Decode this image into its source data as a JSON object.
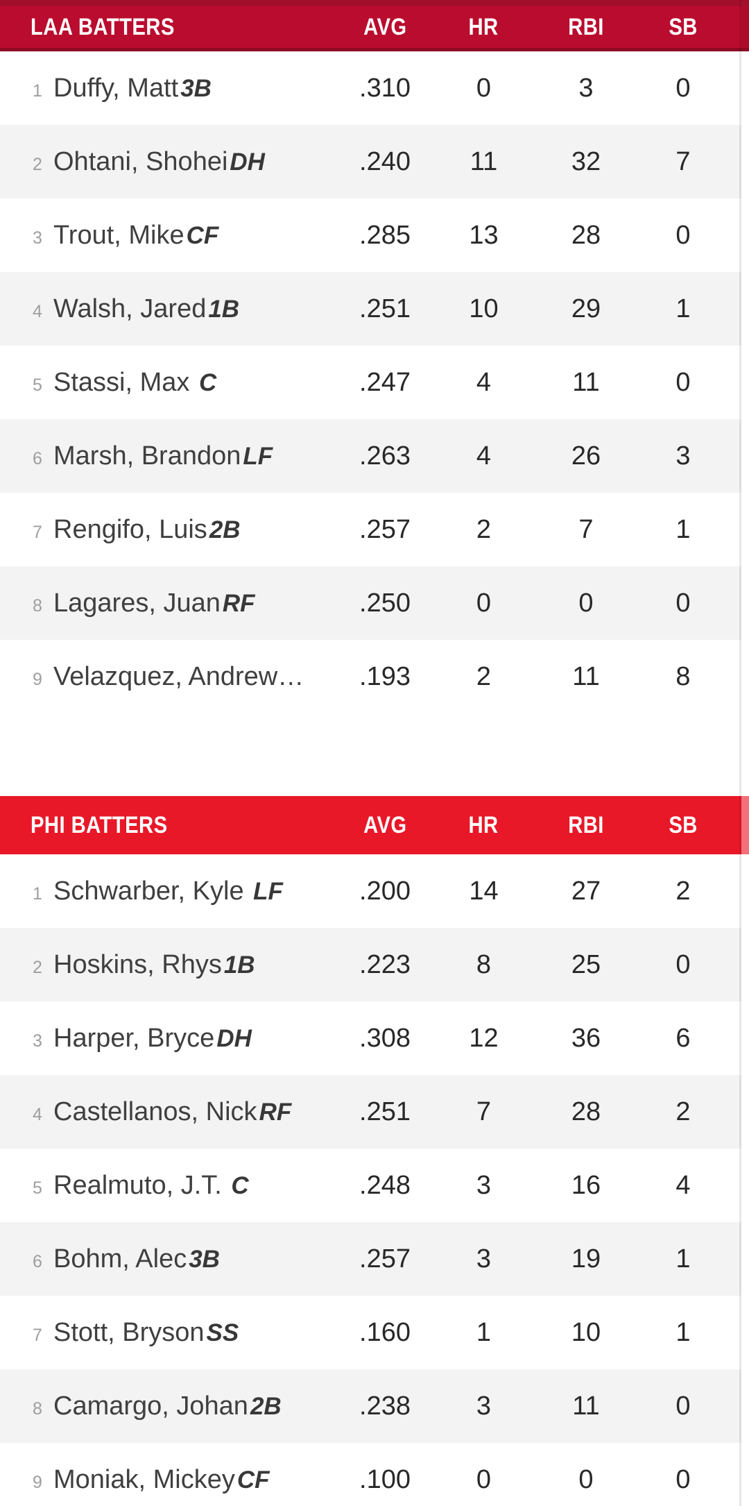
{
  "colors": {
    "page_bg": "#FFFFFF",
    "row_alt": "#F3F3F3",
    "divider": "rgba(0,0,0,0.09)",
    "header_text": "#FFFFFF",
    "name_text": "#3F3F3F",
    "position_text": "#383838",
    "stat_text": "#282828",
    "lineup_number_text": "#9E9E9E"
  },
  "teams": [
    {
      "key": "laa",
      "title": "LAA BATTERS",
      "columns": [
        "AVG",
        "HR",
        "RBI",
        "SB"
      ],
      "colors": {
        "accent": "#BA0C2E",
        "border_top": "#A30E2B",
        "border_bottom": "#8E0A22",
        "edge": "#AD0B2A"
      },
      "rows": [
        {
          "num": "1",
          "name": "Duffy, Matt",
          "pos": "3B",
          "stats": [
            ".310",
            "0",
            "3",
            "0"
          ]
        },
        {
          "num": "2",
          "name": "Ohtani, Shohei",
          "pos": "DH",
          "stats": [
            ".240",
            "11",
            "32",
            "7"
          ]
        },
        {
          "num": "3",
          "name": "Trout, Mike",
          "pos": "CF",
          "stats": [
            ".285",
            "13",
            "28",
            "0"
          ]
        },
        {
          "num": "4",
          "name": "Walsh, Jared",
          "pos": "1B",
          "stats": [
            ".251",
            "10",
            "29",
            "1"
          ]
        },
        {
          "num": "5",
          "name": "Stassi, Max ",
          "pos": "C",
          "stats": [
            ".247",
            "4",
            "11",
            "0"
          ]
        },
        {
          "num": "6",
          "name": "Marsh, Brandon",
          "pos": "LF",
          "stats": [
            ".263",
            "4",
            "26",
            "3"
          ]
        },
        {
          "num": "7",
          "name": "Rengifo, Luis",
          "pos": "2B",
          "stats": [
            ".257",
            "2",
            "7",
            "1"
          ]
        },
        {
          "num": "8",
          "name": "Lagares, Juan",
          "pos": "RF",
          "stats": [
            ".250",
            "0",
            "0",
            "0"
          ]
        },
        {
          "num": "9",
          "name": "Velazquez, Andrew…",
          "pos": "",
          "stats": [
            ".193",
            "2",
            "11",
            "8"
          ]
        }
      ]
    },
    {
      "key": "phi",
      "title": "PHI BATTERS",
      "columns": [
        "AVG",
        "HR",
        "RBI",
        "SB"
      ],
      "colors": {
        "accent": "#E81828",
        "edge": "#F3707A"
      },
      "rows": [
        {
          "num": "1",
          "name": "Schwarber, Kyle ",
          "pos": "LF",
          "stats": [
            ".200",
            "14",
            "27",
            "2"
          ]
        },
        {
          "num": "2",
          "name": "Hoskins, Rhys",
          "pos": "1B",
          "stats": [
            ".223",
            "8",
            "25",
            "0"
          ]
        },
        {
          "num": "3",
          "name": "Harper, Bryce",
          "pos": "DH",
          "stats": [
            ".308",
            "12",
            "36",
            "6"
          ]
        },
        {
          "num": "4",
          "name": "Castellanos, Nick",
          "pos": "RF",
          "stats": [
            ".251",
            "7",
            "28",
            "2"
          ]
        },
        {
          "num": "5",
          "name": "Realmuto, J.T. ",
          "pos": "C",
          "stats": [
            ".248",
            "3",
            "16",
            "4"
          ]
        },
        {
          "num": "6",
          "name": "Bohm, Alec",
          "pos": "3B",
          "stats": [
            ".257",
            "3",
            "19",
            "1"
          ]
        },
        {
          "num": "7",
          "name": "Stott, Bryson",
          "pos": "SS",
          "stats": [
            ".160",
            "1",
            "10",
            "1"
          ]
        },
        {
          "num": "8",
          "name": "Camargo, Johan",
          "pos": "2B",
          "stats": [
            ".238",
            "3",
            "11",
            "0"
          ]
        },
        {
          "num": "9",
          "name": "Moniak, Mickey",
          "pos": "CF",
          "stats": [
            ".100",
            "0",
            "0",
            "0"
          ]
        }
      ]
    }
  ]
}
